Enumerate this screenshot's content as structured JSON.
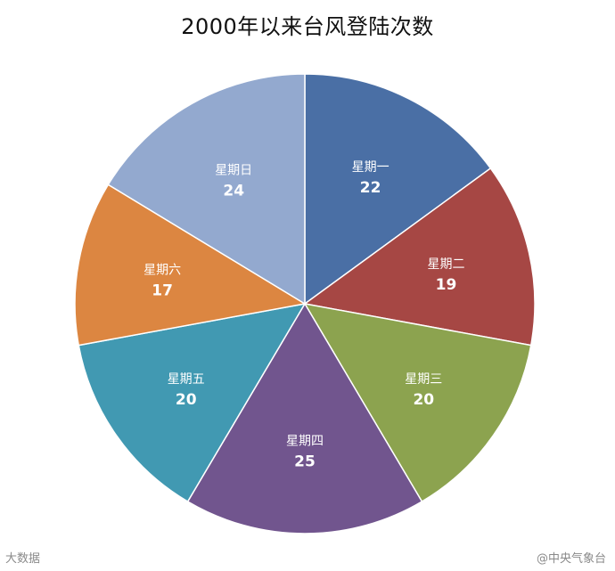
{
  "chart_data": {
    "type": "pie",
    "title": "2000年以来台风登陆次数",
    "categories": [
      "星期一",
      "星期二",
      "星期三",
      "星期四",
      "星期五",
      "星期六",
      "星期日"
    ],
    "values": [
      22,
      19,
      20,
      25,
      20,
      17,
      24
    ],
    "colors": [
      "#4A6FA5",
      "#A64744",
      "#8CA34F",
      "#71558E",
      "#4199B2",
      "#DC8641",
      "#93A9CF"
    ],
    "start": "12 o'clock",
    "direction": "clockwise",
    "legend": "none"
  },
  "watermarks": {
    "left": "大数据",
    "right": "@中央气象台"
  }
}
